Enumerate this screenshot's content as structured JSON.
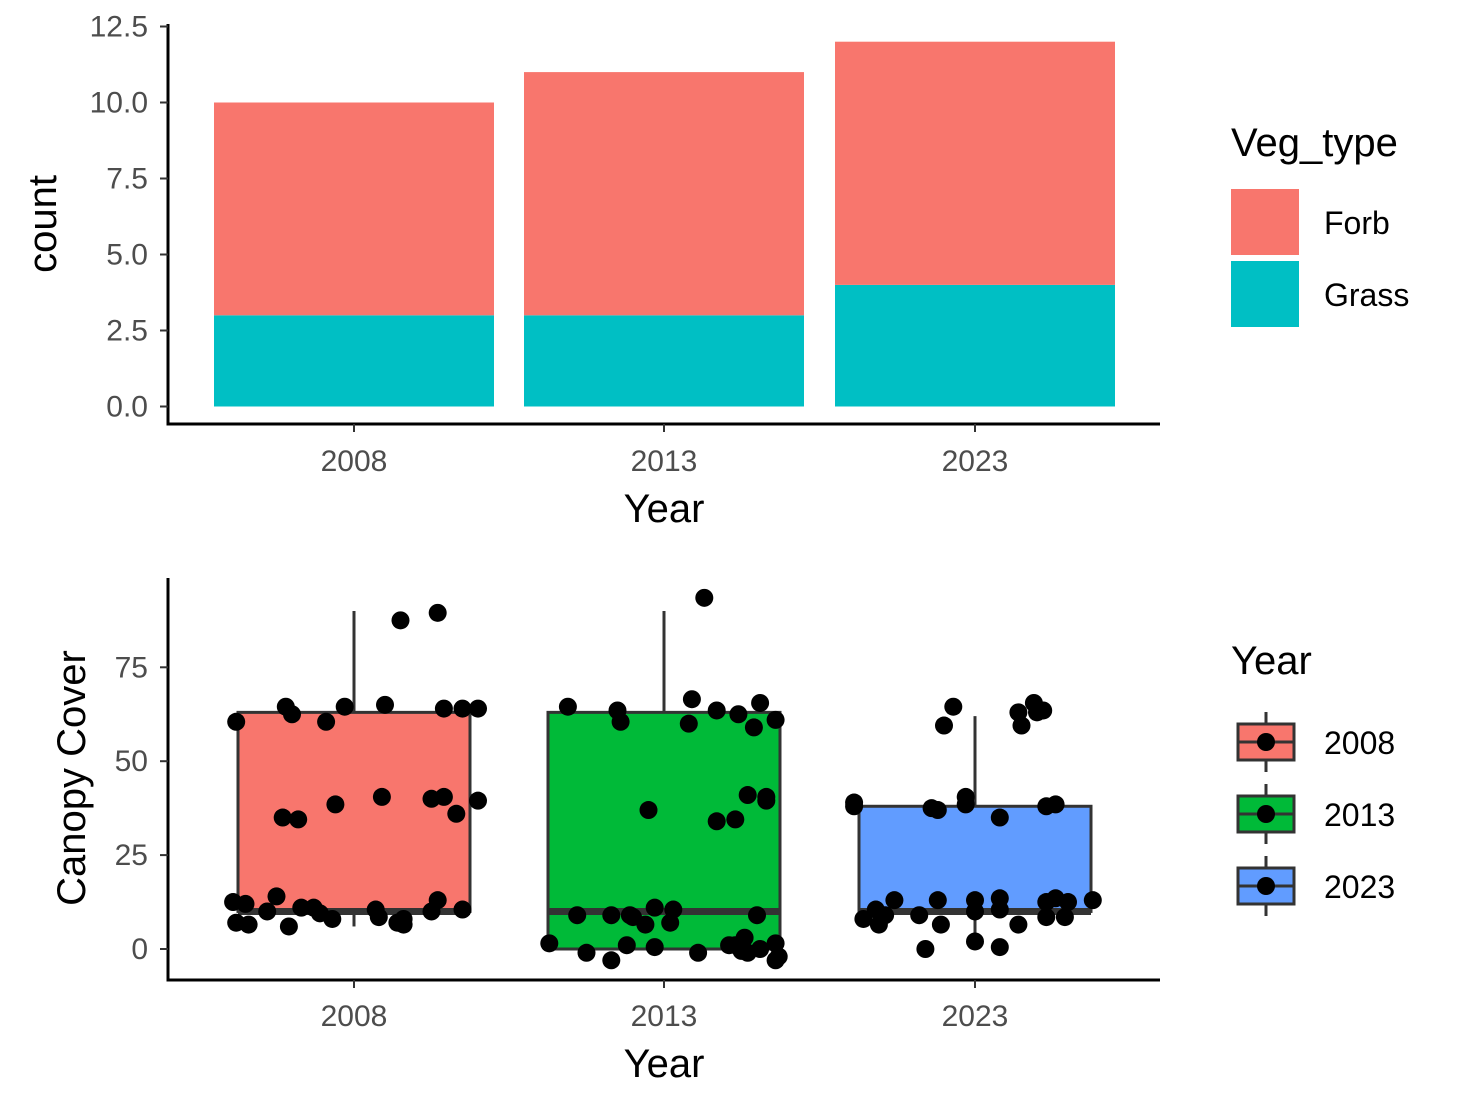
{
  "chart_data": [
    {
      "type": "bar",
      "stacked": true,
      "categories": [
        "2008",
        "2013",
        "2023"
      ],
      "series": [
        {
          "name": "Forb",
          "values": [
            7,
            8,
            8
          ],
          "color": "#F8766D"
        },
        {
          "name": "Grass",
          "values": [
            3,
            3,
            4
          ],
          "color": "#00BFC4"
        }
      ],
      "xlabel": "Year",
      "ylabel": "count",
      "ylim": [
        -1.25,
        12.5
      ],
      "yticks": [
        "0.0",
        "2.5",
        "5.0",
        "7.5",
        "10.0",
        "12.5"
      ],
      "legend": {
        "title": "Veg_type",
        "position": "right"
      },
      "grid": false
    },
    {
      "type": "box",
      "categories": [
        "2008",
        "2013",
        "2023"
      ],
      "xlabel": "Year",
      "ylabel": "Canopy Cover",
      "ylim": [
        -8,
        98
      ],
      "yticks": [
        "0",
        "25",
        "50",
        "75"
      ],
      "legend": {
        "title": "Year",
        "position": "right"
      },
      "grid": false,
      "boxes": [
        {
          "name": "2008",
          "color": "#F8766D",
          "whisker_low": 6,
          "q1": 10,
          "median": 10,
          "q3": 63,
          "whisker_high": 90
        },
        {
          "name": "2013",
          "color": "#00BA38",
          "whisker_low": 0,
          "q1": 0,
          "median": 10,
          "q3": 63,
          "whisker_high": 90
        },
        {
          "name": "2023",
          "color": "#619CFF",
          "whisker_low": 0,
          "q1": 10,
          "median": 10,
          "q3": 38,
          "whisker_high": 62
        }
      ],
      "points": [
        {
          "group": "2008",
          "x_offset": -0.38,
          "y": 60.5
        },
        {
          "group": "2008",
          "x_offset": -0.22,
          "y": 64.5
        },
        {
          "group": "2008",
          "x_offset": -0.2,
          "y": 62.5
        },
        {
          "group": "2008",
          "x_offset": -0.09,
          "y": 60.5
        },
        {
          "group": "2008",
          "x_offset": -0.03,
          "y": 64.5
        },
        {
          "group": "2008",
          "x_offset": 0.1,
          "y": 65
        },
        {
          "group": "2008",
          "x_offset": 0.15,
          "y": 87.5
        },
        {
          "group": "2008",
          "x_offset": 0.27,
          "y": 89.5
        },
        {
          "group": "2008",
          "x_offset": 0.29,
          "y": 64
        },
        {
          "group": "2008",
          "x_offset": 0.35,
          "y": 64
        },
        {
          "group": "2008",
          "x_offset": 0.4,
          "y": 64
        },
        {
          "group": "2008",
          "x_offset": -0.23,
          "y": 35
        },
        {
          "group": "2008",
          "x_offset": -0.18,
          "y": 34.5
        },
        {
          "group": "2008",
          "x_offset": -0.06,
          "y": 38.5
        },
        {
          "group": "2008",
          "x_offset": 0.09,
          "y": 40.5
        },
        {
          "group": "2008",
          "x_offset": 0.25,
          "y": 40
        },
        {
          "group": "2008",
          "x_offset": 0.29,
          "y": 40.5
        },
        {
          "group": "2008",
          "x_offset": 0.33,
          "y": 36
        },
        {
          "group": "2008",
          "x_offset": 0.4,
          "y": 39.5
        },
        {
          "group": "2008",
          "x_offset": -0.39,
          "y": 12.5
        },
        {
          "group": "2008",
          "x_offset": -0.35,
          "y": 12
        },
        {
          "group": "2008",
          "x_offset": -0.28,
          "y": 10
        },
        {
          "group": "2008",
          "x_offset": -0.25,
          "y": 14
        },
        {
          "group": "2008",
          "x_offset": -0.17,
          "y": 11
        },
        {
          "group": "2008",
          "x_offset": -0.13,
          "y": 11
        },
        {
          "group": "2008",
          "x_offset": -0.11,
          "y": 9.5
        },
        {
          "group": "2008",
          "x_offset": -0.07,
          "y": 8
        },
        {
          "group": "2008",
          "x_offset": 0.07,
          "y": 10.5
        },
        {
          "group": "2008",
          "x_offset": 0.08,
          "y": 8.5
        },
        {
          "group": "2008",
          "x_offset": 0.16,
          "y": 8
        },
        {
          "group": "2008",
          "x_offset": 0.25,
          "y": 10
        },
        {
          "group": "2008",
          "x_offset": 0.27,
          "y": 13
        },
        {
          "group": "2008",
          "x_offset": 0.35,
          "y": 10.5
        },
        {
          "group": "2008",
          "x_offset": -0.38,
          "y": 7
        },
        {
          "group": "2008",
          "x_offset": -0.34,
          "y": 6.5
        },
        {
          "group": "2008",
          "x_offset": -0.21,
          "y": 6
        },
        {
          "group": "2008",
          "x_offset": 0.14,
          "y": 7
        },
        {
          "group": "2008",
          "x_offset": 0.16,
          "y": 6.5
        },
        {
          "group": "2013",
          "x_offset": -0.31,
          "y": 64.5
        },
        {
          "group": "2013",
          "x_offset": -0.15,
          "y": 63.5
        },
        {
          "group": "2013",
          "x_offset": -0.14,
          "y": 60.5
        },
        {
          "group": "2013",
          "x_offset": 0.08,
          "y": 60
        },
        {
          "group": "2013",
          "x_offset": 0.09,
          "y": 66.5
        },
        {
          "group": "2013",
          "x_offset": 0.17,
          "y": 63.5
        },
        {
          "group": "2013",
          "x_offset": 0.24,
          "y": 62.5
        },
        {
          "group": "2013",
          "x_offset": 0.29,
          "y": 59
        },
        {
          "group": "2013",
          "x_offset": 0.31,
          "y": 65.5
        },
        {
          "group": "2013",
          "x_offset": 0.36,
          "y": 61
        },
        {
          "group": "2013",
          "x_offset": 0.13,
          "y": 93.5
        },
        {
          "group": "2013",
          "x_offset": -0.05,
          "y": 37
        },
        {
          "group": "2013",
          "x_offset": 0.17,
          "y": 34
        },
        {
          "group": "2013",
          "x_offset": 0.23,
          "y": 34.5
        },
        {
          "group": "2013",
          "x_offset": 0.27,
          "y": 41
        },
        {
          "group": "2013",
          "x_offset": 0.33,
          "y": 40.5
        },
        {
          "group": "2013",
          "x_offset": 0.33,
          "y": 39.5
        },
        {
          "group": "2013",
          "x_offset": -0.28,
          "y": 9
        },
        {
          "group": "2013",
          "x_offset": -0.17,
          "y": 9
        },
        {
          "group": "2013",
          "x_offset": -0.11,
          "y": 9
        },
        {
          "group": "2013",
          "x_offset": -0.1,
          "y": 8.5
        },
        {
          "group": "2013",
          "x_offset": -0.06,
          "y": 6.5
        },
        {
          "group": "2013",
          "x_offset": -0.03,
          "y": 11
        },
        {
          "group": "2013",
          "x_offset": 0.02,
          "y": 7
        },
        {
          "group": "2013",
          "x_offset": 0.03,
          "y": 10.5
        },
        {
          "group": "2013",
          "x_offset": 0.3,
          "y": 9
        },
        {
          "group": "2013",
          "x_offset": -0.37,
          "y": 1.5
        },
        {
          "group": "2013",
          "x_offset": -0.25,
          "y": -1
        },
        {
          "group": "2013",
          "x_offset": -0.17,
          "y": -3
        },
        {
          "group": "2013",
          "x_offset": -0.12,
          "y": 1
        },
        {
          "group": "2013",
          "x_offset": -0.03,
          "y": 0.5
        },
        {
          "group": "2013",
          "x_offset": 0.11,
          "y": -1
        },
        {
          "group": "2013",
          "x_offset": 0.21,
          "y": 1
        },
        {
          "group": "2013",
          "x_offset": 0.23,
          "y": 1
        },
        {
          "group": "2013",
          "x_offset": 0.25,
          "y": -0.5
        },
        {
          "group": "2013",
          "x_offset": 0.26,
          "y": 3
        },
        {
          "group": "2013",
          "x_offset": 0.27,
          "y": -1
        },
        {
          "group": "2013",
          "x_offset": 0.31,
          "y": 0
        },
        {
          "group": "2013",
          "x_offset": 0.36,
          "y": 1.5
        },
        {
          "group": "2013",
          "x_offset": 0.36,
          "y": -3
        },
        {
          "group": "2013",
          "x_offset": 0.37,
          "y": -2
        },
        {
          "group": "2023",
          "x_offset": -0.39,
          "y": 39
        },
        {
          "group": "2023",
          "x_offset": -0.39,
          "y": 38
        },
        {
          "group": "2023",
          "x_offset": -0.14,
          "y": 37.5
        },
        {
          "group": "2023",
          "x_offset": -0.12,
          "y": 37
        },
        {
          "group": "2023",
          "x_offset": -0.03,
          "y": 40.5
        },
        {
          "group": "2023",
          "x_offset": -0.03,
          "y": 38.5
        },
        {
          "group": "2023",
          "x_offset": 0.08,
          "y": 35
        },
        {
          "group": "2023",
          "x_offset": 0.23,
          "y": 38
        },
        {
          "group": "2023",
          "x_offset": 0.26,
          "y": 38.5
        },
        {
          "group": "2023",
          "x_offset": -0.1,
          "y": 59.5
        },
        {
          "group": "2023",
          "x_offset": -0.07,
          "y": 64.5
        },
        {
          "group": "2023",
          "x_offset": 0.14,
          "y": 63
        },
        {
          "group": "2023",
          "x_offset": 0.15,
          "y": 59.5
        },
        {
          "group": "2023",
          "x_offset": 0.19,
          "y": 65.5
        },
        {
          "group": "2023",
          "x_offset": 0.2,
          "y": 63
        },
        {
          "group": "2023",
          "x_offset": 0.22,
          "y": 63.5
        },
        {
          "group": "2023",
          "x_offset": -0.36,
          "y": 8
        },
        {
          "group": "2023",
          "x_offset": -0.32,
          "y": 10.5
        },
        {
          "group": "2023",
          "x_offset": -0.31,
          "y": 6.5
        },
        {
          "group": "2023",
          "x_offset": -0.29,
          "y": 9
        },
        {
          "group": "2023",
          "x_offset": -0.26,
          "y": 13
        },
        {
          "group": "2023",
          "x_offset": -0.18,
          "y": 9
        },
        {
          "group": "2023",
          "x_offset": -0.12,
          "y": 13
        },
        {
          "group": "2023",
          "x_offset": -0.11,
          "y": 6.5
        },
        {
          "group": "2023",
          "x_offset": 0.0,
          "y": 10
        },
        {
          "group": "2023",
          "x_offset": 0.0,
          "y": 13
        },
        {
          "group": "2023",
          "x_offset": 0.08,
          "y": 13.5
        },
        {
          "group": "2023",
          "x_offset": 0.08,
          "y": 10.5
        },
        {
          "group": "2023",
          "x_offset": 0.14,
          "y": 6.5
        },
        {
          "group": "2023",
          "x_offset": 0.23,
          "y": 8.5
        },
        {
          "group": "2023",
          "x_offset": 0.23,
          "y": 12.5
        },
        {
          "group": "2023",
          "x_offset": 0.26,
          "y": 13.5
        },
        {
          "group": "2023",
          "x_offset": 0.29,
          "y": 8.5
        },
        {
          "group": "2023",
          "x_offset": 0.3,
          "y": 12.5
        },
        {
          "group": "2023",
          "x_offset": 0.38,
          "y": 13
        },
        {
          "group": "2023",
          "x_offset": -0.16,
          "y": 0
        },
        {
          "group": "2023",
          "x_offset": 0.0,
          "y": 2
        },
        {
          "group": "2023",
          "x_offset": 0.08,
          "y": 0.5
        }
      ]
    }
  ]
}
